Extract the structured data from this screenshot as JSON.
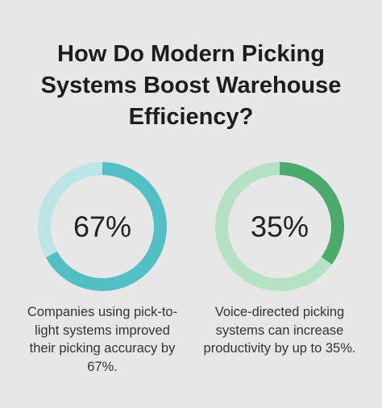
{
  "title": "How Do Modern Picking Systems Boost Warehouse Efficiency?",
  "chart_data": [
    {
      "type": "donut",
      "values": [
        67
      ],
      "value_labels": [
        "67%"
      ],
      "ylim": [
        0,
        100
      ],
      "color": "#52bfc4",
      "track_color": "#bde5e7",
      "caption": "Companies using pick-to-light systems improved their picking accuracy by 67%."
    },
    {
      "type": "donut",
      "values": [
        35
      ],
      "value_labels": [
        "35%"
      ],
      "ylim": [
        0,
        100
      ],
      "color": "#4caa6c",
      "track_color": "#b5e2c4",
      "caption": "Voice-directed picking systems can increase productivity by up to 35%."
    }
  ]
}
